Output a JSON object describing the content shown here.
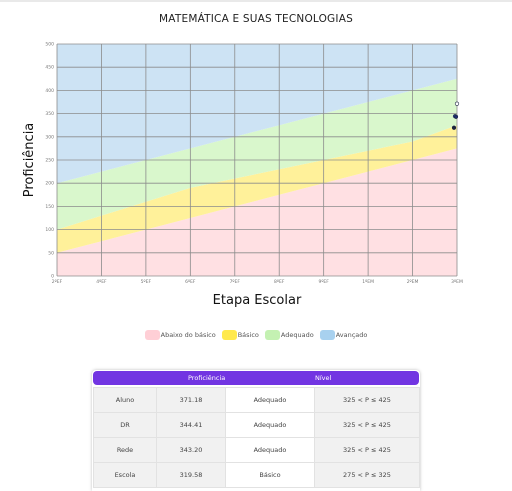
{
  "chart_data": {
    "type": "area",
    "title": "MATEMÁTICA E SUAS TECNOLOGIAS",
    "xlabel": "Etapa Escolar",
    "ylabel": "Proficiência",
    "ylim": [
      0,
      500
    ],
    "yticks": [
      0,
      50,
      100,
      150,
      200,
      250,
      300,
      350,
      400,
      450,
      500
    ],
    "categories": [
      "2ºEF",
      "4ºEF",
      "5ºEF",
      "6ºEF",
      "7ºEF",
      "8ºEF",
      "9ºEF",
      "1ºEM",
      "2ºEM",
      "3ºEM"
    ],
    "grid": true,
    "legend_position": "bottom",
    "bands": [
      {
        "name": "Abaixo do básico",
        "color": "#ffe0e3",
        "upper": [
          50,
          75,
          100,
          125,
          150,
          175,
          200,
          225,
          250,
          275
        ]
      },
      {
        "name": "Básico",
        "color": "#fff19a",
        "upper": [
          100,
          130,
          160,
          190,
          210,
          230,
          250,
          270,
          290,
          325
        ]
      },
      {
        "name": "Adequado",
        "color": "#d9f7cc",
        "upper": [
          200,
          225,
          250,
          275,
          300,
          325,
          350,
          375,
          400,
          425
        ]
      },
      {
        "name": "Avançado",
        "color": "#cde3f4",
        "upper": [
          500,
          500,
          500,
          500,
          500,
          500,
          500,
          500,
          500,
          500
        ]
      }
    ],
    "points": [
      {
        "label": "Aluno",
        "category": "3ºEM",
        "value": 371.18,
        "color": "#ffffff"
      },
      {
        "label": "DR",
        "category": "3ºEM",
        "value": 344.41,
        "color": "#3a55b5"
      },
      {
        "label": "Rede",
        "category": "3ºEM",
        "value": 343.2,
        "color": "#1d2a6e"
      },
      {
        "label": "Escola",
        "category": "3ºEM",
        "value": 319.58,
        "color": "#1b2340"
      }
    ]
  },
  "legend": [
    {
      "label": "Abaixo do básico",
      "color": "#ffcfd6"
    },
    {
      "label": "Básico",
      "color": "#ffe94d"
    },
    {
      "label": "Adequado",
      "color": "#c4f1b2"
    },
    {
      "label": "Avançado",
      "color": "#a8d1ef"
    }
  ],
  "table": {
    "headers": [
      "Proficiência",
      "Nível"
    ],
    "rows": [
      {
        "label": "Aluno",
        "value": "371.18",
        "level": "Adequado",
        "range": "325 < P ≤ 425"
      },
      {
        "label": "DR",
        "value": "344.41",
        "level": "Adequado",
        "range": "325 < P ≤ 425"
      },
      {
        "label": "Rede",
        "value": "343.20",
        "level": "Adequado",
        "range": "325 < P ≤ 425"
      },
      {
        "label": "Escola",
        "value": "319.58",
        "level": "Básico",
        "range": "275 < P ≤ 325"
      }
    ]
  }
}
